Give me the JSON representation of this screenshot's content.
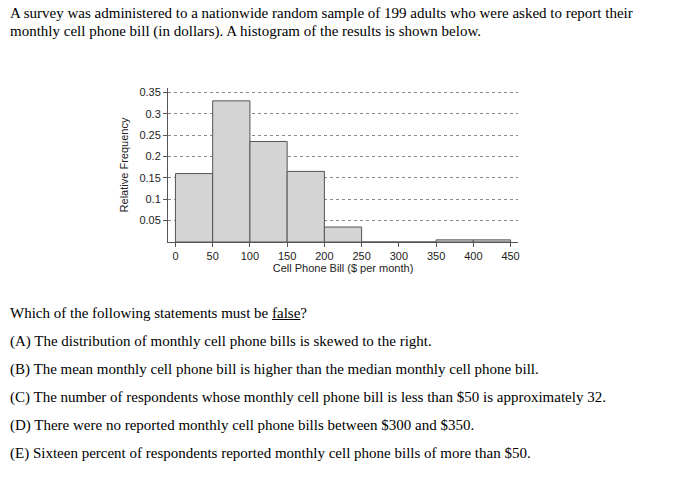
{
  "intro": "A survey was administered to a nationwide random sample of 199 adults who were asked to report their monthly cell phone bill (in dollars). A histogram of the results is shown below.",
  "chart_data": {
    "type": "histogram",
    "x_label": "Cell Phone Bill ($ per month)",
    "y_label": "Relative Frequency",
    "bins": [
      0,
      50,
      100,
      150,
      200,
      250,
      300,
      350,
      400,
      450
    ],
    "values": [
      0.16,
      0.33,
      0.235,
      0.165,
      0.035,
      0,
      0,
      0.005,
      0.005
    ],
    "color": "#d4d4d4",
    "xlim": [
      -10,
      460
    ],
    "xticks": [
      0,
      50,
      100,
      150,
      200,
      250,
      300,
      350,
      400,
      450
    ],
    "ylim": [
      0,
      0.36
    ],
    "yticks": [
      0.05,
      0.1,
      0.15,
      0.2,
      0.25,
      0.3,
      0.35
    ],
    "grid": true
  },
  "question": {
    "prompt_before": "Which of the following statements must be ",
    "prompt_underlined": "false",
    "prompt_after": "?",
    "options": [
      {
        "letter": "(A)",
        "text": "The distribution of monthly cell phone bills is skewed to the right."
      },
      {
        "letter": "(B)",
        "text": "The mean monthly cell phone bill is higher than the median monthly cell phone bill."
      },
      {
        "letter": "(C)",
        "text": "The number of respondents whose monthly cell phone bill is less than $50 is approximately 32."
      },
      {
        "letter": "(D)",
        "text": "There were no reported monthly cell phone bills between $300 and $350."
      },
      {
        "letter": "(E)",
        "text": "Sixteen percent of respondents reported monthly cell phone bills of more than $50."
      }
    ]
  }
}
